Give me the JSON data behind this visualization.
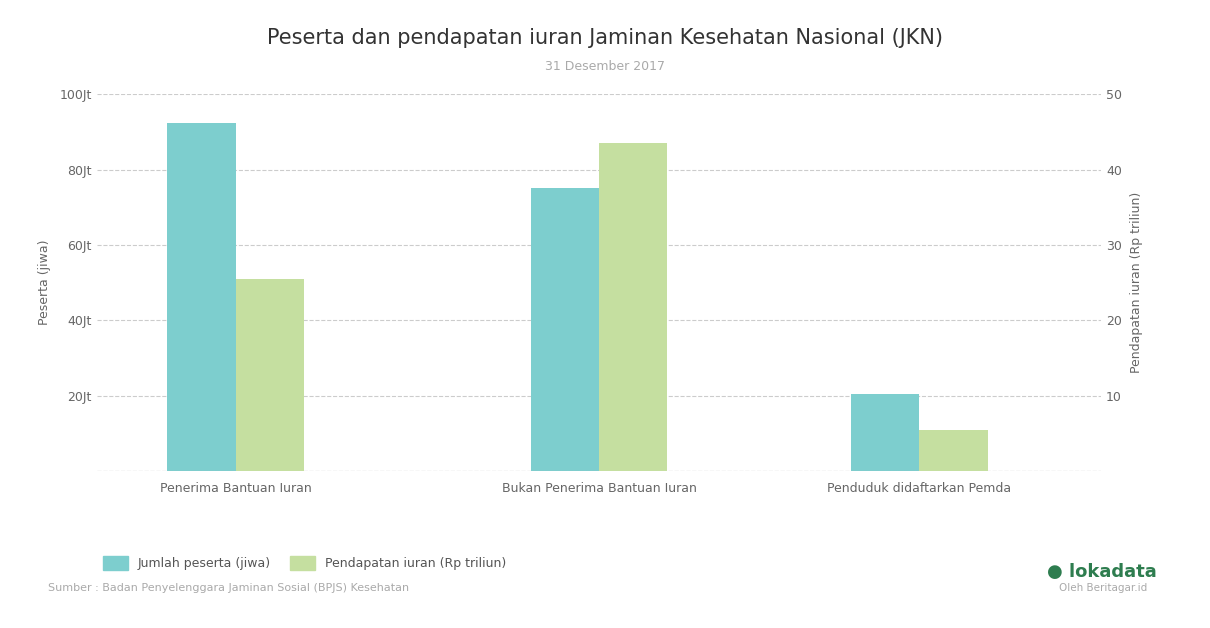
{
  "title": "Peserta dan pendapatan iuran Jaminan Kesehatan Nasional (JKN)",
  "subtitle": "31 Desember 2017",
  "categories": [
    "Penerima Bantuan Iuran",
    "Bukan Penerima Bantuan Iuran",
    "Penduduk didaftarkan Pemda"
  ],
  "peserta_values": [
    92.4,
    75.0,
    20.4
  ],
  "pendapatan_values": [
    25.5,
    43.5,
    5.5
  ],
  "peserta_color": "#7dcece",
  "pendapatan_color": "#c5dfa0",
  "ylabel_left": "Peserta (jiwa)",
  "ylabel_right": "Pendapatan iuran (Rp triliun)",
  "ylim_left": [
    0,
    100
  ],
  "ylim_right": [
    0,
    50
  ],
  "yticks_left": [
    0,
    20,
    40,
    60,
    80,
    100
  ],
  "ytick_labels_left": [
    "",
    "20Jt",
    "40Jt",
    "60Jt",
    "80Jt",
    "100Jt"
  ],
  "yticks_right": [
    0,
    10,
    20,
    30,
    40,
    50
  ],
  "ytick_labels_right": [
    "",
    "10",
    "20",
    "30",
    "40",
    "50"
  ],
  "legend_label_1": "Jumlah peserta (jiwa)",
  "legend_label_2": "Pendapatan iuran (Rp triliun)",
  "source_text": "Sumber : Badan Penyelenggara Jaminan Sosial (BPJS) Kesehatan",
  "background_color": "#ffffff",
  "grid_color": "#cccccc",
  "title_fontsize": 15,
  "subtitle_fontsize": 9,
  "axis_label_fontsize": 9,
  "tick_fontsize": 9,
  "bar_width": 0.32,
  "x_positions": [
    0.5,
    2.2,
    3.7
  ],
  "xlim": [
    -0.15,
    4.55
  ]
}
